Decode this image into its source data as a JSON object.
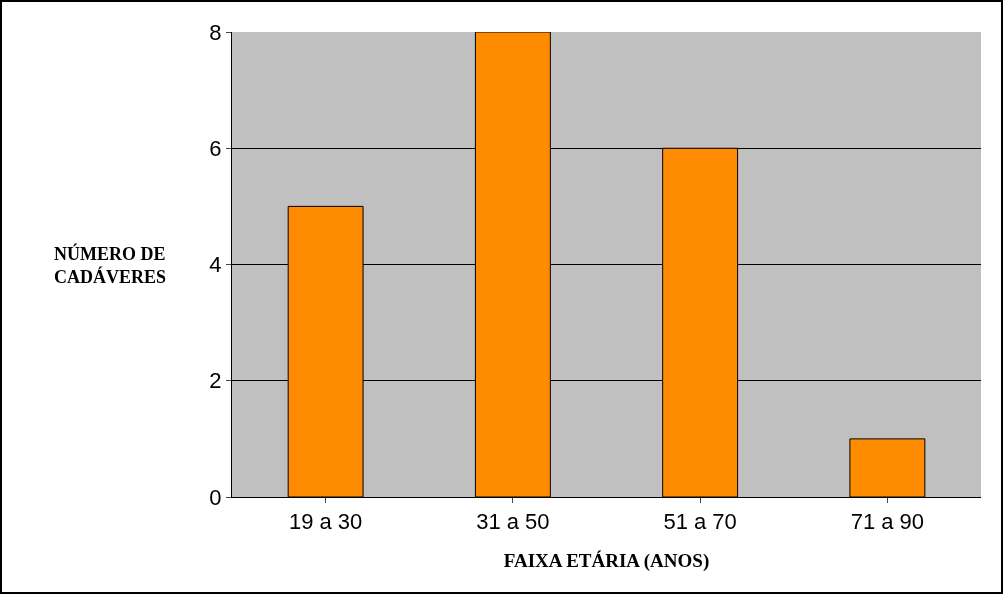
{
  "chart_data": {
    "type": "bar",
    "xlabel": "FAIXA ETÁRIA (ANOS)",
    "ylabel": "NÚMERO DE\nCADÁVERES",
    "categories": [
      "19 a 30",
      "31 a 50",
      "51 a 70",
      "71 a 90"
    ],
    "values": [
      5,
      8,
      6,
      1
    ],
    "color": "#ff8c00",
    "ylim": [
      0,
      8
    ],
    "yticks": [
      0,
      2,
      4,
      6,
      8
    ],
    "grid": "y"
  }
}
